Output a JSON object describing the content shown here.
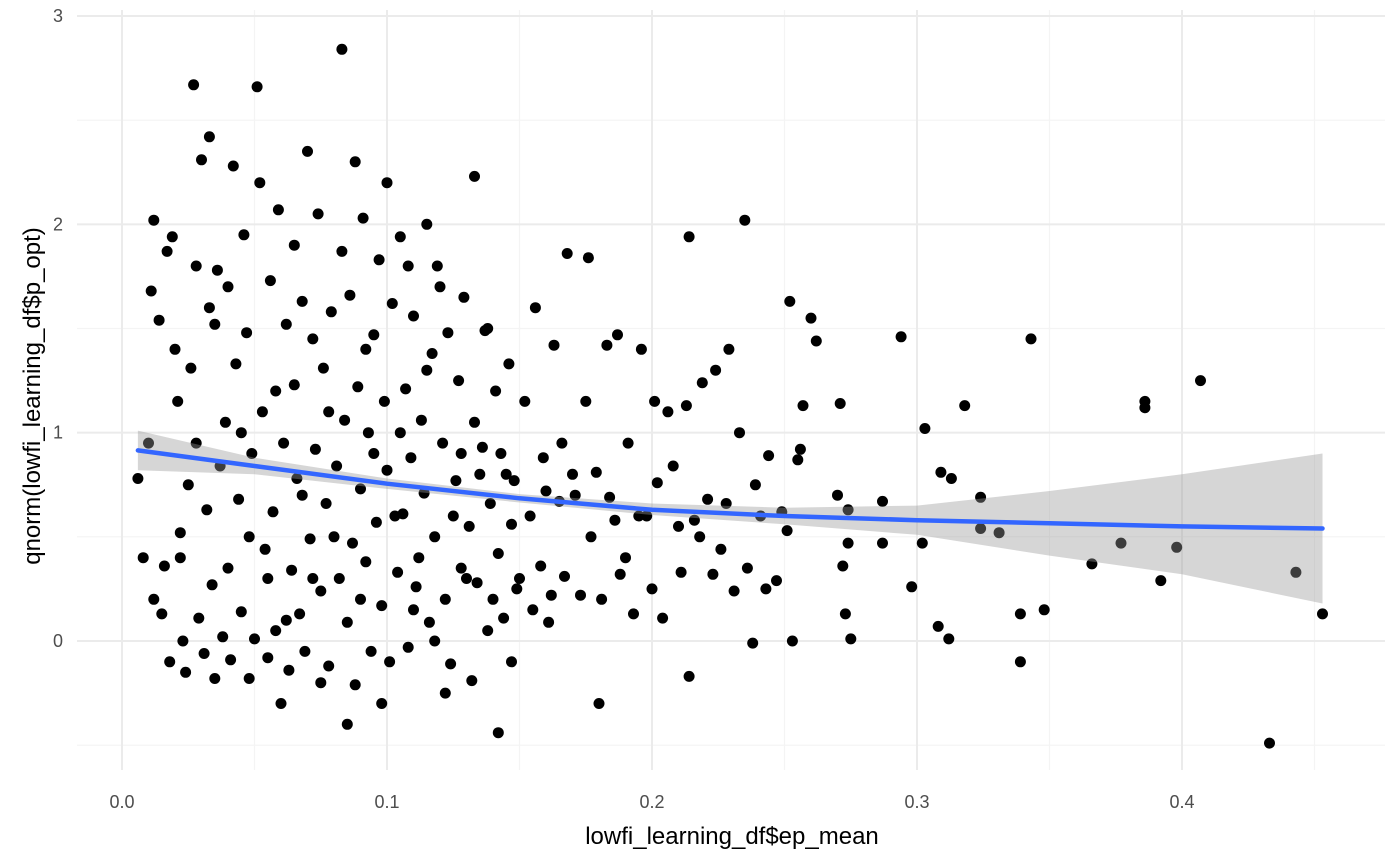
{
  "colors": {
    "background": "#ffffff",
    "grid_major": "#ebebeb",
    "grid_minor": "#f4f4f4",
    "point": "#000000",
    "smooth_line": "#3366ff",
    "ribbon": "#999999",
    "tick_text": "#4d4d4d"
  },
  "chart_data": {
    "type": "scatter",
    "title": "",
    "xlabel": "lowfi_learning_df$ep_mean",
    "ylabel": "qnorm(lowfi_learning_df$p_opt)",
    "xlim": [
      -0.008,
      0.475
    ],
    "ylim": [
      -0.63,
      3.0
    ],
    "x_ticks": [
      0.0,
      0.1,
      0.2,
      0.3,
      0.4
    ],
    "x_tick_labels": [
      "0.0",
      "0.1",
      "0.2",
      "0.3",
      "0.4"
    ],
    "y_ticks": [
      0,
      1,
      2,
      3
    ],
    "y_tick_labels": [
      "0",
      "1",
      "2",
      "3"
    ],
    "grid": true,
    "legend": "none",
    "smooth": {
      "method": "loess",
      "x": [
        0.006,
        0.05,
        0.1,
        0.15,
        0.2,
        0.25,
        0.3,
        0.35,
        0.4,
        0.453
      ],
      "y": [
        0.915,
        0.84,
        0.755,
        0.685,
        0.63,
        0.6,
        0.58,
        0.565,
        0.55,
        0.54
      ],
      "ci_lower": [
        0.82,
        0.8,
        0.73,
        0.665,
        0.605,
        0.56,
        0.51,
        0.41,
        0.32,
        0.18
      ],
      "ci_upper": [
        1.01,
        0.88,
        0.78,
        0.705,
        0.66,
        0.64,
        0.65,
        0.72,
        0.8,
        0.9
      ]
    },
    "points": [
      [
        0.006,
        0.78
      ],
      [
        0.01,
        0.95
      ],
      [
        0.012,
        0.2
      ],
      [
        0.015,
        0.13
      ],
      [
        0.018,
        -0.1
      ],
      [
        0.022,
        0.4
      ],
      [
        0.027,
        2.67
      ],
      [
        0.028,
        1.8
      ],
      [
        0.033,
        2.42
      ],
      [
        0.035,
        1.52
      ],
      [
        0.04,
        1.7
      ],
      [
        0.045,
        1.0
      ],
      [
        0.048,
        0.5
      ],
      [
        0.051,
        2.66
      ],
      [
        0.055,
        0.3
      ],
      [
        0.058,
        1.2
      ],
      [
        0.06,
        -0.3
      ],
      [
        0.062,
        0.1
      ],
      [
        0.065,
        1.9
      ],
      [
        0.068,
        0.7
      ],
      [
        0.07,
        2.35
      ],
      [
        0.072,
        0.3
      ],
      [
        0.075,
        -0.2
      ],
      [
        0.078,
        1.1
      ],
      [
        0.08,
        0.5
      ],
      [
        0.083,
        2.84
      ],
      [
        0.085,
        -0.4
      ],
      [
        0.088,
        2.3
      ],
      [
        0.09,
        0.2
      ],
      [
        0.092,
        1.4
      ],
      [
        0.095,
        0.9
      ],
      [
        0.098,
        -0.3
      ],
      [
        0.1,
        2.2
      ],
      [
        0.103,
        0.6
      ],
      [
        0.105,
        1.0
      ],
      [
        0.108,
        1.8
      ],
      [
        0.11,
        0.15
      ],
      [
        0.112,
        0.4
      ],
      [
        0.115,
        1.3
      ],
      [
        0.118,
        0.0
      ],
      [
        0.12,
        1.7
      ],
      [
        0.122,
        -0.25
      ],
      [
        0.125,
        0.6
      ],
      [
        0.128,
        0.9
      ],
      [
        0.13,
        0.3
      ],
      [
        0.133,
        2.23
      ],
      [
        0.135,
        0.8
      ],
      [
        0.138,
        1.5
      ],
      [
        0.14,
        0.2
      ],
      [
        0.142,
        -0.44
      ],
      [
        0.145,
        0.8
      ],
      [
        0.147,
        -0.1
      ],
      [
        0.15,
        0.3
      ],
      [
        0.155,
        0.15
      ],
      [
        0.16,
        0.72
      ],
      [
        0.162,
        0.22
      ],
      [
        0.166,
        0.95
      ],
      [
        0.17,
        0.8
      ],
      [
        0.176,
        1.84
      ],
      [
        0.18,
        -0.3
      ],
      [
        0.183,
        1.42
      ],
      [
        0.186,
        0.58
      ],
      [
        0.19,
        0.4
      ],
      [
        0.195,
        0.6
      ],
      [
        0.2,
        0.25
      ],
      [
        0.202,
        0.76
      ],
      [
        0.21,
        0.55
      ],
      [
        0.214,
        1.94
      ],
      [
        0.214,
        -0.17
      ],
      [
        0.218,
        0.5
      ],
      [
        0.224,
        1.3
      ],
      [
        0.229,
        1.4
      ],
      [
        0.235,
        2.02
      ],
      [
        0.238,
        -0.01
      ],
      [
        0.243,
        0.25
      ],
      [
        0.252,
        1.63
      ],
      [
        0.255,
        0.87
      ],
      [
        0.26,
        1.55
      ],
      [
        0.27,
        0.7
      ],
      [
        0.274,
        0.47
      ],
      [
        0.275,
        0.01
      ],
      [
        0.287,
        0.47
      ],
      [
        0.294,
        1.46
      ],
      [
        0.298,
        0.26
      ],
      [
        0.303,
        1.02
      ],
      [
        0.308,
        0.07
      ],
      [
        0.312,
        0.01
      ],
      [
        0.318,
        1.13
      ],
      [
        0.324,
        0.69
      ],
      [
        0.331,
        0.52
      ],
      [
        0.339,
        0.13
      ],
      [
        0.339,
        -0.1
      ],
      [
        0.343,
        1.45
      ],
      [
        0.348,
        0.15
      ],
      [
        0.366,
        0.37
      ],
      [
        0.377,
        0.47
      ],
      [
        0.386,
        1.12
      ],
      [
        0.386,
        1.15
      ],
      [
        0.392,
        0.29
      ],
      [
        0.398,
        0.45
      ],
      [
        0.407,
        1.25
      ],
      [
        0.433,
        -0.49
      ],
      [
        0.443,
        0.33
      ],
      [
        0.453,
        0.13
      ],
      [
        0.008,
        0.4
      ],
      [
        0.011,
        1.68
      ],
      [
        0.012,
        2.02
      ],
      [
        0.014,
        1.54
      ],
      [
        0.016,
        0.36
      ],
      [
        0.017,
        1.87
      ],
      [
        0.019,
        1.94
      ],
      [
        0.02,
        1.4
      ],
      [
        0.021,
        1.15
      ],
      [
        0.022,
        0.52
      ],
      [
        0.023,
        0.0
      ],
      [
        0.024,
        -0.15
      ],
      [
        0.025,
        0.75
      ],
      [
        0.026,
        1.31
      ],
      [
        0.028,
        0.95
      ],
      [
        0.029,
        0.11
      ],
      [
        0.03,
        2.31
      ],
      [
        0.031,
        -0.06
      ],
      [
        0.032,
        0.63
      ],
      [
        0.033,
        1.6
      ],
      [
        0.034,
        0.27
      ],
      [
        0.035,
        -0.18
      ],
      [
        0.036,
        1.78
      ],
      [
        0.037,
        0.84
      ],
      [
        0.038,
        0.02
      ],
      [
        0.039,
        1.05
      ],
      [
        0.04,
        0.35
      ],
      [
        0.041,
        -0.09
      ],
      [
        0.042,
        2.28
      ],
      [
        0.043,
        1.33
      ],
      [
        0.044,
        0.68
      ],
      [
        0.045,
        0.14
      ],
      [
        0.046,
        1.95
      ],
      [
        0.047,
        1.48
      ],
      [
        0.048,
        -0.18
      ],
      [
        0.049,
        0.9
      ],
      [
        0.05,
        0.01
      ],
      [
        0.052,
        2.2
      ],
      [
        0.053,
        1.1
      ],
      [
        0.054,
        0.44
      ],
      [
        0.055,
        -0.08
      ],
      [
        0.056,
        1.73
      ],
      [
        0.057,
        0.62
      ],
      [
        0.058,
        0.05
      ],
      [
        0.059,
        2.07
      ],
      [
        0.061,
        0.95
      ],
      [
        0.062,
        1.52
      ],
      [
        0.063,
        -0.14
      ],
      [
        0.064,
        0.34
      ],
      [
        0.065,
        1.23
      ],
      [
        0.066,
        0.78
      ],
      [
        0.067,
        0.13
      ],
      [
        0.068,
        1.63
      ],
      [
        0.069,
        -0.05
      ],
      [
        0.071,
        0.49
      ],
      [
        0.072,
        1.45
      ],
      [
        0.073,
        0.92
      ],
      [
        0.074,
        2.05
      ],
      [
        0.075,
        0.24
      ],
      [
        0.076,
        1.31
      ],
      [
        0.077,
        0.66
      ],
      [
        0.078,
        -0.12
      ],
      [
        0.079,
        1.58
      ],
      [
        0.081,
        0.84
      ],
      [
        0.082,
        0.3
      ],
      [
        0.083,
        1.87
      ],
      [
        0.084,
        1.06
      ],
      [
        0.085,
        0.09
      ],
      [
        0.086,
        1.66
      ],
      [
        0.087,
        0.47
      ],
      [
        0.088,
        -0.21
      ],
      [
        0.089,
        1.22
      ],
      [
        0.09,
        0.73
      ],
      [
        0.091,
        2.03
      ],
      [
        0.092,
        0.38
      ],
      [
        0.093,
        1.0
      ],
      [
        0.094,
        -0.05
      ],
      [
        0.095,
        1.47
      ],
      [
        0.096,
        0.57
      ],
      [
        0.097,
        1.83
      ],
      [
        0.098,
        0.17
      ],
      [
        0.099,
        1.15
      ],
      [
        0.1,
        0.82
      ],
      [
        0.101,
        -0.1
      ],
      [
        0.102,
        1.62
      ],
      [
        0.104,
        0.33
      ],
      [
        0.105,
        1.94
      ],
      [
        0.106,
        0.61
      ],
      [
        0.107,
        1.21
      ],
      [
        0.108,
        -0.03
      ],
      [
        0.109,
        0.88
      ],
      [
        0.11,
        1.56
      ],
      [
        0.111,
        0.26
      ],
      [
        0.113,
        1.06
      ],
      [
        0.114,
        0.71
      ],
      [
        0.115,
        2.0
      ],
      [
        0.116,
        0.09
      ],
      [
        0.117,
        1.38
      ],
      [
        0.118,
        0.5
      ],
      [
        0.119,
        1.8
      ],
      [
        0.121,
        0.95
      ],
      [
        0.122,
        0.2
      ],
      [
        0.123,
        1.48
      ],
      [
        0.124,
        -0.11
      ],
      [
        0.126,
        0.77
      ],
      [
        0.127,
        1.25
      ],
      [
        0.128,
        0.35
      ],
      [
        0.129,
        1.65
      ],
      [
        0.131,
        0.55
      ],
      [
        0.132,
        -0.19
      ],
      [
        0.133,
        1.05
      ],
      [
        0.134,
        0.28
      ],
      [
        0.136,
        0.93
      ],
      [
        0.137,
        1.49
      ],
      [
        0.138,
        0.05
      ],
      [
        0.139,
        0.66
      ],
      [
        0.141,
        1.2
      ],
      [
        0.142,
        0.42
      ],
      [
        0.143,
        0.9
      ],
      [
        0.144,
        0.11
      ],
      [
        0.146,
        1.33
      ],
      [
        0.147,
        0.56
      ],
      [
        0.148,
        0.77
      ],
      [
        0.149,
        0.25
      ],
      [
        0.152,
        1.15
      ],
      [
        0.154,
        0.6
      ],
      [
        0.156,
        1.6
      ],
      [
        0.158,
        0.36
      ],
      [
        0.159,
        0.88
      ],
      [
        0.161,
        0.09
      ],
      [
        0.163,
        1.42
      ],
      [
        0.165,
        0.67
      ],
      [
        0.167,
        0.31
      ],
      [
        0.168,
        1.86
      ],
      [
        0.171,
        0.7
      ],
      [
        0.173,
        0.22
      ],
      [
        0.175,
        1.15
      ],
      [
        0.177,
        0.5
      ],
      [
        0.179,
        0.81
      ],
      [
        0.181,
        0.2
      ],
      [
        0.184,
        0.69
      ],
      [
        0.187,
        1.47
      ],
      [
        0.188,
        0.32
      ],
      [
        0.191,
        0.95
      ],
      [
        0.193,
        0.13
      ],
      [
        0.196,
        1.4
      ],
      [
        0.198,
        0.6
      ],
      [
        0.201,
        1.15
      ],
      [
        0.204,
        0.11
      ],
      [
        0.206,
        1.1
      ],
      [
        0.208,
        0.84
      ],
      [
        0.211,
        0.33
      ],
      [
        0.213,
        1.13
      ],
      [
        0.216,
        0.58
      ],
      [
        0.219,
        1.24
      ],
      [
        0.221,
        0.68
      ],
      [
        0.223,
        0.32
      ],
      [
        0.226,
        0.44
      ],
      [
        0.228,
        0.66
      ],
      [
        0.231,
        0.24
      ],
      [
        0.233,
        1.0
      ],
      [
        0.236,
        0.35
      ],
      [
        0.239,
        0.75
      ],
      [
        0.241,
        0.6
      ],
      [
        0.244,
        0.89
      ],
      [
        0.247,
        0.29
      ],
      [
        0.249,
        0.62
      ],
      [
        0.251,
        0.53
      ],
      [
        0.253,
        0.0
      ],
      [
        0.256,
        0.92
      ],
      [
        0.257,
        1.13
      ],
      [
        0.262,
        1.44
      ],
      [
        0.271,
        1.14
      ],
      [
        0.272,
        0.36
      ],
      [
        0.273,
        0.13
      ],
      [
        0.274,
        0.63
      ],
      [
        0.287,
        0.67
      ],
      [
        0.302,
        0.47
      ],
      [
        0.309,
        0.81
      ],
      [
        0.313,
        0.78
      ],
      [
        0.324,
        0.54
      ]
    ]
  }
}
